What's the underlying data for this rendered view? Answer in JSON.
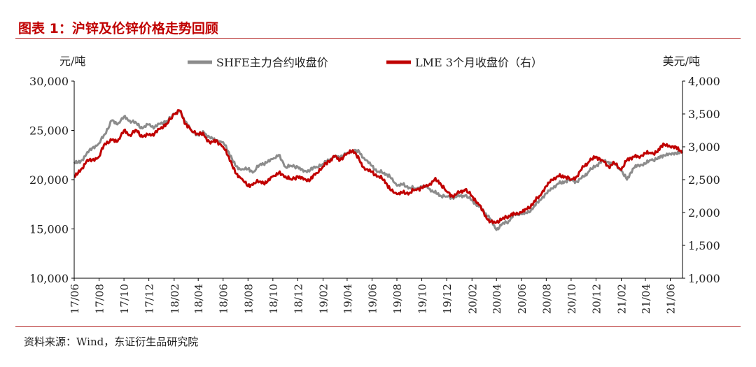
{
  "header": {
    "title": "图表 1：沪锌及伦锌价格走势回顾"
  },
  "footer": {
    "source": "资料来源：Wind，东证衍生品研究院"
  },
  "chart_data": {
    "type": "line",
    "left_unit": "元/吨",
    "right_unit": "美元/吨",
    "left_ylim": [
      10000,
      30000
    ],
    "left_ticks": [
      "10,000",
      "15,000",
      "20,000",
      "25,000",
      "30,000"
    ],
    "right_ylim": [
      1000,
      4000
    ],
    "right_ticks": [
      "1,000",
      "1,500",
      "2,000",
      "2,500",
      "3,000",
      "3,500",
      "4,000"
    ],
    "x_ticks": [
      "17/06",
      "17/08",
      "17/10",
      "17/12",
      "18/02",
      "18/04",
      "18/06",
      "18/08",
      "18/10",
      "18/12",
      "19/02",
      "19/04",
      "19/06",
      "19/08",
      "19/10",
      "19/12",
      "20/02",
      "20/04",
      "20/06",
      "20/08",
      "20/10",
      "20/12",
      "21/02",
      "21/04",
      "21/06"
    ],
    "legend_placement": "top-center",
    "colors": {
      "shfe": "#8c8c8c",
      "lme": "#c00000"
    },
    "series": [
      {
        "name": "SHFE主力合约收盘价",
        "axis": "left",
        "x": [
          "2017-06-01",
          "2017-06-15",
          "2017-07-01",
          "2017-07-15",
          "2017-08-01",
          "2017-08-15",
          "2017-09-01",
          "2017-09-15",
          "2017-10-01",
          "2017-10-15",
          "2017-11-01",
          "2017-11-15",
          "2017-12-01",
          "2017-12-15",
          "2018-01-01",
          "2018-01-15",
          "2018-02-01",
          "2018-02-15",
          "2018-03-01",
          "2018-03-15",
          "2018-04-01",
          "2018-04-15",
          "2018-05-01",
          "2018-05-15",
          "2018-06-01",
          "2018-06-15",
          "2018-07-01",
          "2018-07-15",
          "2018-08-01",
          "2018-08-15",
          "2018-09-01",
          "2018-09-15",
          "2018-10-01",
          "2018-10-15",
          "2018-11-01",
          "2018-11-15",
          "2018-12-01",
          "2018-12-15",
          "2019-01-01",
          "2019-01-15",
          "2019-02-01",
          "2019-02-15",
          "2019-03-01",
          "2019-03-15",
          "2019-04-01",
          "2019-04-15",
          "2019-05-01",
          "2019-05-15",
          "2019-06-01",
          "2019-06-15",
          "2019-07-01",
          "2019-07-15",
          "2019-08-01",
          "2019-08-15",
          "2019-09-01",
          "2019-09-15",
          "2019-10-01",
          "2019-10-15",
          "2019-11-01",
          "2019-11-15",
          "2019-12-01",
          "2019-12-15",
          "2020-01-01",
          "2020-01-15",
          "2020-02-01",
          "2020-02-15",
          "2020-03-01",
          "2020-03-15",
          "2020-04-01",
          "2020-04-15",
          "2020-05-01",
          "2020-05-15",
          "2020-06-01",
          "2020-06-15",
          "2020-07-01",
          "2020-07-15",
          "2020-08-01",
          "2020-08-15",
          "2020-09-01",
          "2020-09-15",
          "2020-10-01",
          "2020-10-15",
          "2020-11-01",
          "2020-11-15",
          "2020-12-01",
          "2020-12-15",
          "2021-01-01",
          "2021-01-15",
          "2021-02-01",
          "2021-02-15",
          "2021-03-01",
          "2021-03-15",
          "2021-04-01",
          "2021-04-15",
          "2021-05-01",
          "2021-05-15",
          "2021-06-01",
          "2021-06-15",
          "2021-06-30"
        ],
        "y": [
          21800,
          21700,
          22600,
          23200,
          23700,
          24600,
          26000,
          25600,
          26400,
          26000,
          25700,
          25200,
          25600,
          25300,
          25800,
          25900,
          26700,
          26900,
          25900,
          25000,
          24500,
          24800,
          24200,
          24000,
          23800,
          22800,
          21400,
          21000,
          21100,
          20800,
          21600,
          21700,
          22100,
          22500,
          21300,
          21400,
          21300,
          20800,
          21000,
          21300,
          21600,
          22000,
          22300,
          22300,
          22700,
          23000,
          22800,
          22000,
          21400,
          20800,
          20700,
          20300,
          19400,
          19500,
          19200,
          19100,
          19300,
          19200,
          18700,
          18400,
          18300,
          18200,
          18300,
          18400,
          17900,
          17400,
          16800,
          16100,
          14900,
          15500,
          15800,
          16500,
          16500,
          16600,
          17200,
          17900,
          18600,
          19100,
          19600,
          19800,
          20000,
          19800,
          20300,
          20900,
          21400,
          21900,
          21800,
          21600,
          20900,
          20000,
          21100,
          21500,
          21600,
          22000,
          22100,
          22500,
          22600,
          22700,
          22700
        ]
      },
      {
        "name": "LME 3个月收盘价（右）",
        "axis": "right",
        "x": [
          "2017-06-01",
          "2017-06-15",
          "2017-07-01",
          "2017-07-15",
          "2017-08-01",
          "2017-08-15",
          "2017-09-01",
          "2017-09-15",
          "2017-10-01",
          "2017-10-15",
          "2017-11-01",
          "2017-11-15",
          "2017-12-01",
          "2017-12-15",
          "2018-01-01",
          "2018-01-15",
          "2018-02-01",
          "2018-02-15",
          "2018-03-01",
          "2018-03-15",
          "2018-04-01",
          "2018-04-15",
          "2018-05-01",
          "2018-05-15",
          "2018-06-01",
          "2018-06-15",
          "2018-07-01",
          "2018-07-15",
          "2018-08-01",
          "2018-08-15",
          "2018-09-01",
          "2018-09-15",
          "2018-10-01",
          "2018-10-15",
          "2018-11-01",
          "2018-11-15",
          "2018-12-01",
          "2018-12-15",
          "2019-01-01",
          "2019-01-15",
          "2019-02-01",
          "2019-02-15",
          "2019-03-01",
          "2019-03-15",
          "2019-04-01",
          "2019-04-15",
          "2019-05-01",
          "2019-05-15",
          "2019-06-01",
          "2019-06-15",
          "2019-07-01",
          "2019-07-15",
          "2019-08-01",
          "2019-08-15",
          "2019-09-01",
          "2019-09-15",
          "2019-10-01",
          "2019-10-15",
          "2019-11-01",
          "2019-11-15",
          "2019-12-01",
          "2019-12-15",
          "2020-01-01",
          "2020-01-15",
          "2020-02-01",
          "2020-02-15",
          "2020-03-01",
          "2020-03-15",
          "2020-04-01",
          "2020-04-15",
          "2020-05-01",
          "2020-05-15",
          "2020-06-01",
          "2020-06-15",
          "2020-07-01",
          "2020-07-15",
          "2020-08-01",
          "2020-08-15",
          "2020-09-01",
          "2020-09-15",
          "2020-10-01",
          "2020-10-15",
          "2020-11-01",
          "2020-11-15",
          "2020-12-01",
          "2020-12-15",
          "2021-01-01",
          "2021-01-15",
          "2021-02-01",
          "2021-02-15",
          "2021-03-01",
          "2021-03-15",
          "2021-04-01",
          "2021-04-15",
          "2021-05-01",
          "2021-05-15",
          "2021-06-01",
          "2021-06-15",
          "2021-06-30"
        ],
        "y": [
          2550,
          2620,
          2780,
          2800,
          2850,
          3050,
          3100,
          3080,
          3250,
          3180,
          3250,
          3150,
          3180,
          3200,
          3300,
          3350,
          3500,
          3550,
          3350,
          3250,
          3200,
          3180,
          3050,
          3100,
          3000,
          2850,
          2600,
          2520,
          2400,
          2450,
          2470,
          2450,
          2550,
          2600,
          2550,
          2500,
          2550,
          2500,
          2500,
          2600,
          2700,
          2780,
          2850,
          2800,
          2900,
          2950,
          2800,
          2650,
          2620,
          2550,
          2500,
          2350,
          2280,
          2300,
          2300,
          2350,
          2380,
          2400,
          2500,
          2450,
          2320,
          2250,
          2300,
          2350,
          2250,
          2150,
          2000,
          1850,
          1850,
          1900,
          1950,
          1980,
          2000,
          2050,
          2150,
          2250,
          2400,
          2500,
          2550,
          2550,
          2500,
          2550,
          2700,
          2780,
          2850,
          2800,
          2700,
          2750,
          2650,
          2800,
          2850,
          2850,
          2900,
          2900,
          2920,
          3050,
          3000,
          3000,
          2900
        ]
      }
    ]
  }
}
